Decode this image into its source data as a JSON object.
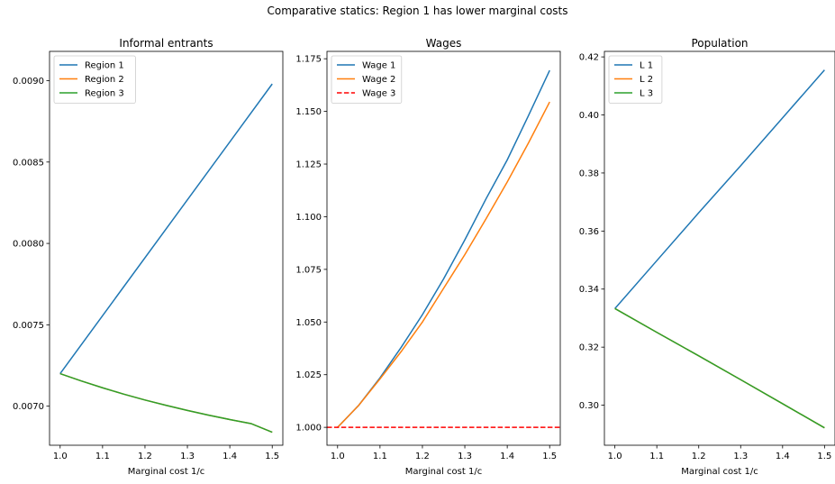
{
  "suptitle": "Comparative statics: Region 1 has lower marginal costs",
  "chart_data": [
    {
      "type": "line",
      "title": "Informal entrants",
      "xlabel": "Marginal cost 1/c",
      "ylabel": "",
      "xlim": [
        0.975,
        1.525
      ],
      "ylim": [
        0.00676,
        0.00918
      ],
      "xticks": [
        1.0,
        1.1,
        1.2,
        1.3,
        1.4,
        1.5
      ],
      "xtick_labels": [
        "1.0",
        "1.1",
        "1.2",
        "1.3",
        "1.4",
        "1.5"
      ],
      "yticks": [
        0.007,
        0.0075,
        0.008,
        0.0085,
        0.009
      ],
      "ytick_labels": [
        "0.0070",
        "0.0075",
        "0.0080",
        "0.0085",
        "0.0090"
      ],
      "legend_position": "top-left",
      "grid": false,
      "series": [
        {
          "name": "Region 1",
          "color": "#1f77b4",
          "dash": "solid",
          "x": [
            1.0,
            1.5
          ],
          "y": [
            0.0072,
            0.00898
          ]
        },
        {
          "name": "Region 2",
          "color": "#ff7f0e",
          "dash": "solid",
          "x": [
            1.0,
            1.05,
            1.1,
            1.15,
            1.2,
            1.25,
            1.3,
            1.35,
            1.4,
            1.45,
            1.5
          ],
          "y": [
            0.0072,
            0.007155,
            0.007113,
            0.007074,
            0.007038,
            0.007005,
            0.006974,
            0.006945,
            0.006918,
            0.006893,
            0.00684
          ]
        },
        {
          "name": "Region 3",
          "color": "#2ca02c",
          "dash": "solid",
          "x": [
            1.0,
            1.05,
            1.1,
            1.15,
            1.2,
            1.25,
            1.3,
            1.35,
            1.4,
            1.45,
            1.5
          ],
          "y": [
            0.0072,
            0.007155,
            0.007113,
            0.007074,
            0.007038,
            0.007005,
            0.006974,
            0.006945,
            0.006918,
            0.006893,
            0.00684
          ]
        }
      ]
    },
    {
      "type": "line",
      "title": "Wages",
      "xlabel": "Marginal cost 1/c",
      "ylabel": "",
      "xlim": [
        0.975,
        1.525
      ],
      "ylim": [
        0.9915,
        1.1785
      ],
      "xticks": [
        1.0,
        1.1,
        1.2,
        1.3,
        1.4,
        1.5
      ],
      "xtick_labels": [
        "1.0",
        "1.1",
        "1.2",
        "1.3",
        "1.4",
        "1.5"
      ],
      "yticks": [
        1.0,
        1.025,
        1.05,
        1.075,
        1.1,
        1.125,
        1.15,
        1.175
      ],
      "ytick_labels": [
        "1.000",
        "1.025",
        "1.050",
        "1.075",
        "1.100",
        "1.125",
        "1.150",
        "1.175"
      ],
      "legend_position": "top-left",
      "grid": false,
      "series": [
        {
          "name": "Wage 1",
          "color": "#1f77b4",
          "dash": "solid",
          "x": [
            1.0,
            1.05,
            1.1,
            1.15,
            1.2,
            1.25,
            1.3,
            1.35,
            1.4,
            1.45,
            1.5
          ],
          "y": [
            1.0,
            1.0105,
            1.0235,
            1.038,
            1.0535,
            1.0705,
            1.089,
            1.1085,
            1.127,
            1.148,
            1.1695
          ]
        },
        {
          "name": "Wage 2",
          "color": "#ff7f0e",
          "dash": "solid",
          "x": [
            1.0,
            1.05,
            1.1,
            1.15,
            1.2,
            1.25,
            1.3,
            1.35,
            1.4,
            1.45,
            1.5
          ],
          "y": [
            1.0,
            1.0105,
            1.023,
            1.036,
            1.05,
            1.066,
            1.082,
            1.099,
            1.1165,
            1.135,
            1.1545
          ]
        },
        {
          "name": "Wage 3",
          "color": "#ff0000",
          "dash": "dashed",
          "x": [
            0.975,
            1.525
          ],
          "y": [
            1.0,
            1.0
          ]
        }
      ]
    },
    {
      "type": "line",
      "title": "Population",
      "xlabel": "Marginal cost 1/c",
      "ylabel": "",
      "xlim": [
        0.975,
        1.525
      ],
      "ylim": [
        0.2862,
        0.4219
      ],
      "xticks": [
        1.0,
        1.1,
        1.2,
        1.3,
        1.4,
        1.5
      ],
      "xtick_labels": [
        "1.0",
        "1.1",
        "1.2",
        "1.3",
        "1.4",
        "1.5"
      ],
      "yticks": [
        0.3,
        0.32,
        0.34,
        0.36,
        0.38,
        0.4,
        0.42
      ],
      "ytick_labels": [
        "0.30",
        "0.32",
        "0.34",
        "0.36",
        "0.38",
        "0.40",
        "0.42"
      ],
      "legend_position": "top-left",
      "grid": false,
      "series": [
        {
          "name": "L 1",
          "color": "#1f77b4",
          "dash": "solid",
          "x": [
            1.0,
            1.1,
            1.2,
            1.3,
            1.4,
            1.5
          ],
          "y": [
            0.3333,
            0.3498,
            0.3663,
            0.3825,
            0.399,
            0.4155
          ]
        },
        {
          "name": "L 2",
          "color": "#ff7f0e",
          "dash": "solid",
          "x": [
            1.0,
            1.1,
            1.2,
            1.3,
            1.4,
            1.5
          ],
          "y": [
            0.3333,
            0.3251,
            0.317,
            0.3088,
            0.3005,
            0.2922
          ]
        },
        {
          "name": "L 3",
          "color": "#2ca02c",
          "dash": "solid",
          "x": [
            1.0,
            1.1,
            1.2,
            1.3,
            1.4,
            1.5
          ],
          "y": [
            0.3333,
            0.3251,
            0.317,
            0.3088,
            0.3005,
            0.2922
          ]
        }
      ]
    }
  ]
}
